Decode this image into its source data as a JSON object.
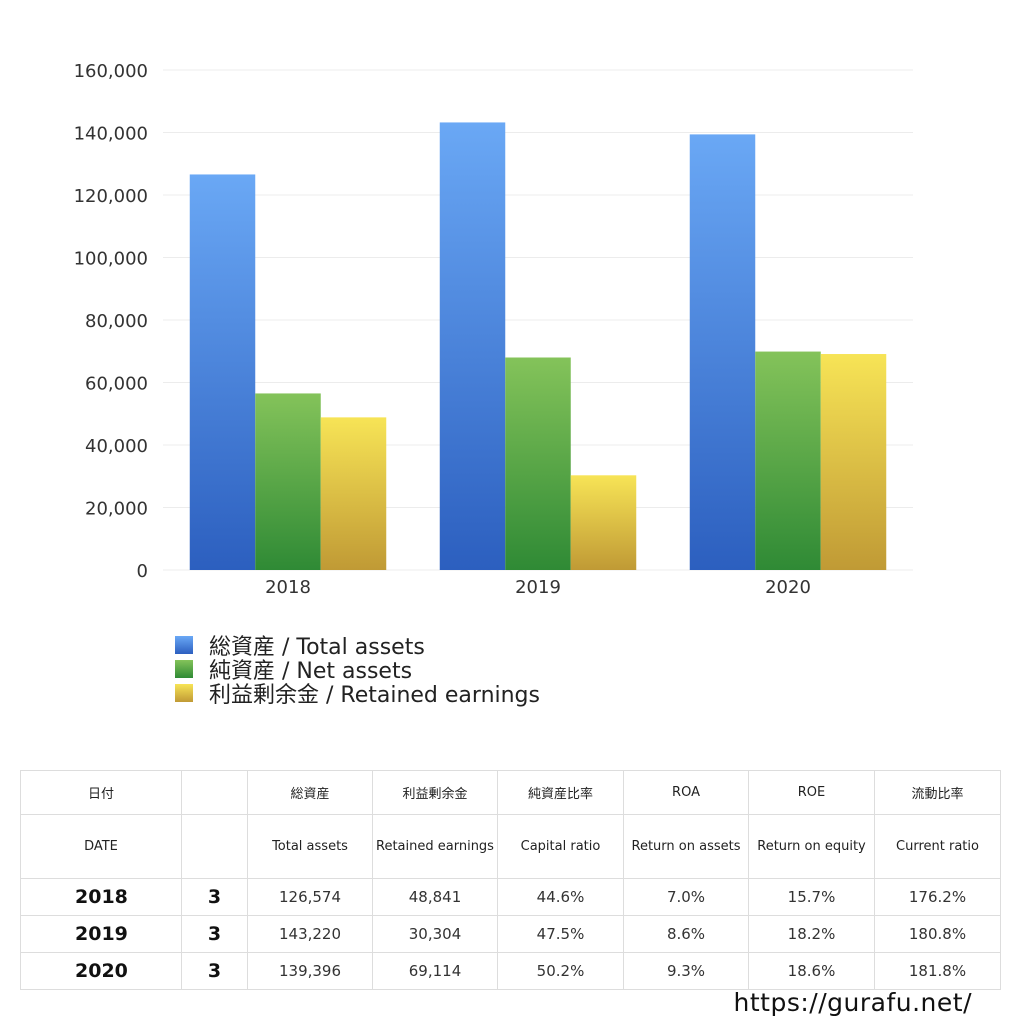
{
  "chart_data": {
    "type": "bar",
    "categories": [
      "2018",
      "2019",
      "2020"
    ],
    "series": [
      {
        "name": "総資産 / Total assets",
        "values": [
          126574,
          143220,
          139396
        ],
        "color": "#4a86d9"
      },
      {
        "name": "純資産 / Net assets",
        "values": [
          56500,
          68000,
          69900
        ],
        "color": "#5aa845"
      },
      {
        "name": "利益剰余金 / Retained earnings",
        "values": [
          48841,
          30304,
          69114
        ],
        "color": "#e2c94b"
      }
    ],
    "y_ticks": [
      "0",
      "20,000",
      "40,000",
      "60,000",
      "80,000",
      "100,000",
      "120,000",
      "140,000",
      "160,000"
    ],
    "ylim": [
      0,
      160000
    ],
    "grid": true,
    "legend_position": "bottom-left"
  },
  "table": {
    "header_jp": [
      "日付",
      "",
      "総資産",
      "利益剰余金",
      "純資産比率",
      "ROA",
      "ROE",
      "流動比率"
    ],
    "header_en": [
      "DATE",
      "",
      "Total assets",
      "Retained earnings",
      "Capital ratio",
      "Return on assets",
      "Return on equity",
      "Current ratio"
    ],
    "rows": [
      [
        "2018",
        "3",
        "126,574",
        "48,841",
        "44.6%",
        "7.0%",
        "15.7%",
        "176.2%"
      ],
      [
        "2019",
        "3",
        "143,220",
        "30,304",
        "47.5%",
        "8.6%",
        "18.2%",
        "180.8%"
      ],
      [
        "2020",
        "3",
        "139,396",
        "69,114",
        "50.2%",
        "9.3%",
        "18.6%",
        "181.8%"
      ]
    ]
  },
  "site_url": "https://gurafu.net/"
}
